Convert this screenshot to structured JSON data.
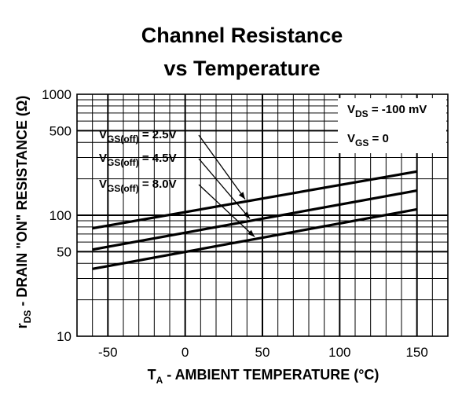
{
  "chart_data": {
    "type": "line",
    "title_line1": "Channel Resistance",
    "title_line2": "vs Temperature",
    "xlabel": {
      "main": "T",
      "sub": "A",
      "rest": " - AMBIENT TEMPERATURE (°C)"
    },
    "ylabel": {
      "main": "r",
      "sub": "DS",
      "rest": " - DRAIN \"ON\" RESISTANCE (Ω)"
    },
    "xlim": [
      -70,
      170
    ],
    "ylim": [
      10,
      1000
    ],
    "y_scale": "log",
    "x_ticks": [
      -50,
      0,
      50,
      100,
      150
    ],
    "x_tick_labels": [
      "-50",
      "0",
      "50",
      "100",
      "150"
    ],
    "y_tick_values": [
      10,
      50,
      100,
      500,
      1000
    ],
    "y_tick_labels": [
      "10",
      "50",
      "100",
      "500",
      "1000"
    ],
    "grid": true,
    "conditions": [
      {
        "main": "V",
        "sub": "DS",
        "rest": " = -100 mV"
      },
      {
        "main": "V",
        "sub": "GS",
        "rest": " = 0"
      }
    ],
    "series": [
      {
        "name": {
          "main": "V",
          "sub": "GS(off)",
          "rest": " = 2.5V"
        },
        "x": [
          -60,
          150
        ],
        "y": [
          78,
          230
        ]
      },
      {
        "name": {
          "main": "V",
          "sub": "GS(off)",
          "rest": " = 4.5V"
        },
        "x": [
          -60,
          150
        ],
        "y": [
          52,
          160
        ]
      },
      {
        "name": {
          "main": "V",
          "sub": "GS(off)",
          "rest": " = 8.0V"
        },
        "x": [
          -60,
          150
        ],
        "y": [
          36,
          112
        ]
      }
    ]
  }
}
